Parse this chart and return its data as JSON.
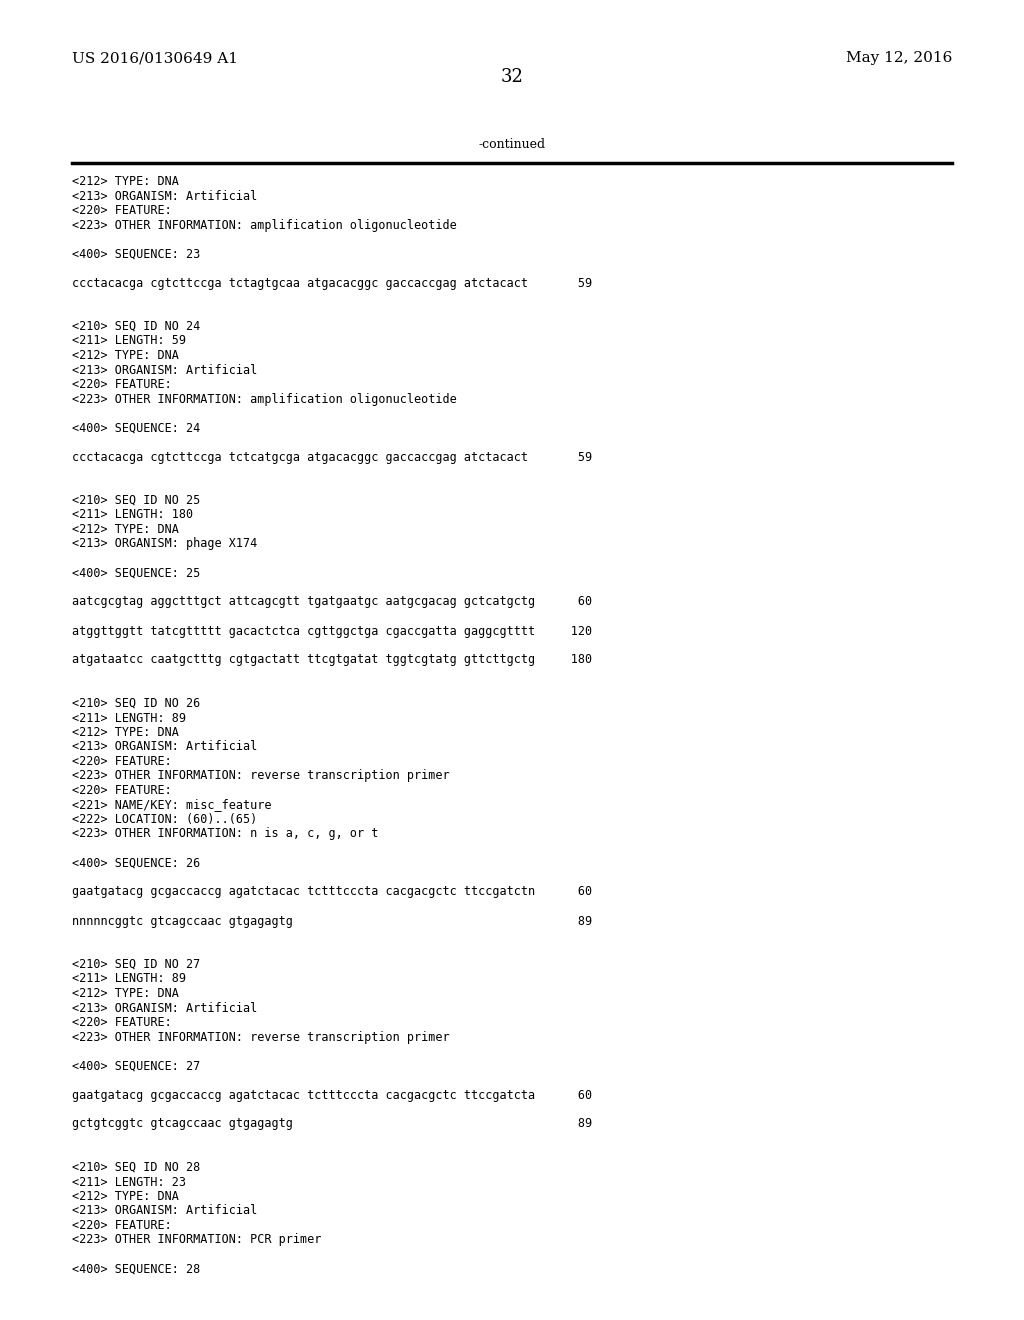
{
  "bg_color": "#ffffff",
  "header_left": "US 2016/0130649 A1",
  "header_right": "May 12, 2016",
  "page_number": "32",
  "continued_text": "-continued",
  "header_fontsize": 11,
  "page_num_fontsize": 13,
  "mono_fontsize": 8.5,
  "serif_fontsize": 9,
  "content_lines": [
    "<212> TYPE: DNA",
    "<213> ORGANISM: Artificial",
    "<220> FEATURE:",
    "<223> OTHER INFORMATION: amplification oligonucleotide",
    "",
    "<400> SEQUENCE: 23",
    "",
    "ccctacacga cgtcttccga tctagtgcaa atgacacggc gaccaccgag atctacact       59",
    "",
    "",
    "<210> SEQ ID NO 24",
    "<211> LENGTH: 59",
    "<212> TYPE: DNA",
    "<213> ORGANISM: Artificial",
    "<220> FEATURE:",
    "<223> OTHER INFORMATION: amplification oligonucleotide",
    "",
    "<400> SEQUENCE: 24",
    "",
    "ccctacacga cgtcttccga tctcatgcga atgacacggc gaccaccgag atctacact       59",
    "",
    "",
    "<210> SEQ ID NO 25",
    "<211> LENGTH: 180",
    "<212> TYPE: DNA",
    "<213> ORGANISM: phage X174",
    "",
    "<400> SEQUENCE: 25",
    "",
    "aatcgcgtag aggctttgct attcagcgtt tgatgaatgc aatgcgacag gctcatgctg      60",
    "",
    "atggttggtt tatcgttttt gacactctca cgttggctga cgaccgatta gaggcgtttt     120",
    "",
    "atgataatcc caatgctttg cgtgactatt ttcgtgatat tggtcgtatg gttcttgctg     180",
    "",
    "",
    "<210> SEQ ID NO 26",
    "<211> LENGTH: 89",
    "<212> TYPE: DNA",
    "<213> ORGANISM: Artificial",
    "<220> FEATURE:",
    "<223> OTHER INFORMATION: reverse transcription primer",
    "<220> FEATURE:",
    "<221> NAME/KEY: misc_feature",
    "<222> LOCATION: (60)..(65)",
    "<223> OTHER INFORMATION: n is a, c, g, or t",
    "",
    "<400> SEQUENCE: 26",
    "",
    "gaatgatacg gcgaccaccg agatctacac tctttcccta cacgacgctc ttccgatctn      60",
    "",
    "nnnnncggtc gtcagccaac gtgagagtg                                        89",
    "",
    "",
    "<210> SEQ ID NO 27",
    "<211> LENGTH: 89",
    "<212> TYPE: DNA",
    "<213> ORGANISM: Artificial",
    "<220> FEATURE:",
    "<223> OTHER INFORMATION: reverse transcription primer",
    "",
    "<400> SEQUENCE: 27",
    "",
    "gaatgatacg gcgaccaccg agatctacac tctttcccta cacgacgctc ttccgatcta      60",
    "",
    "gctgtcggtc gtcagccaac gtgagagtg                                        89",
    "",
    "",
    "<210> SEQ ID NO 28",
    "<211> LENGTH: 23",
    "<212> TYPE: DNA",
    "<213> ORGANISM: Artificial",
    "<220> FEATURE:",
    "<223> OTHER INFORMATION: PCR primer",
    "",
    "<400> SEQUENCE: 28"
  ]
}
